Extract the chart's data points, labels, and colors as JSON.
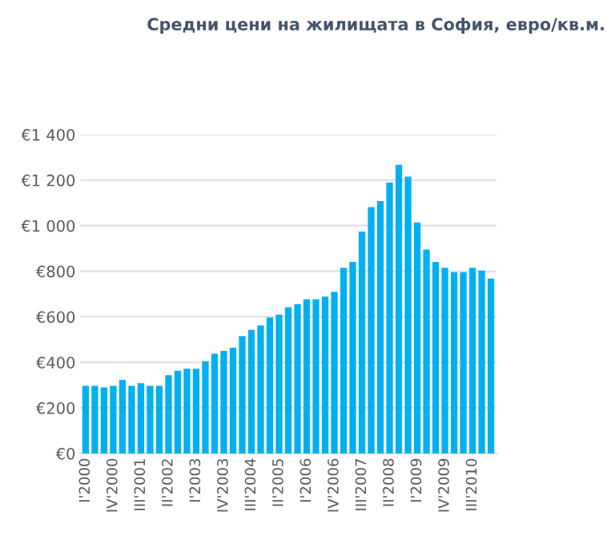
{
  "chart_data": {
    "type": "bar",
    "title": "Средни цени на жилищата в София, евро/кв.м.",
    "categories": [
      "I'2000",
      null,
      null,
      "IV'2000",
      null,
      null,
      "III'2001",
      null,
      null,
      "II'2002",
      null,
      null,
      "I'2003",
      null,
      null,
      "IV'2003",
      null,
      null,
      "III'2004",
      null,
      null,
      "II'2005",
      null,
      null,
      "I'2006",
      null,
      null,
      "IV'2006",
      null,
      null,
      "III'2007",
      null,
      null,
      "II'2008",
      null,
      null,
      "I'2009",
      null,
      null,
      "IV'2009",
      null,
      null,
      "III'2010",
      null,
      null
    ],
    "values": [
      297,
      297,
      290,
      297,
      323,
      297,
      309,
      297,
      297,
      344,
      363,
      372,
      372,
      405,
      438,
      450,
      464,
      515,
      543,
      562,
      597,
      609,
      642,
      656,
      677,
      677,
      689,
      710,
      815,
      841,
      974,
      1082,
      1108,
      1190,
      1267,
      1215,
      1014,
      895,
      841,
      815,
      796,
      796,
      815,
      803,
      768
    ],
    "color": "#00b0f0",
    "ylim": [
      0,
      1400
    ],
    "yticks": [
      {
        "value": 0,
        "label": "€0"
      },
      {
        "value": 200,
        "label": "€200"
      },
      {
        "value": 400,
        "label": "€400"
      },
      {
        "value": 600,
        "label": "€600"
      },
      {
        "value": 800,
        "label": "€800"
      },
      {
        "value": 1000,
        "label": "€1 000"
      },
      {
        "value": 1200,
        "label": "€1 200"
      },
      {
        "value": 1400,
        "label": "€1 400"
      }
    ],
    "grid": "y"
  }
}
